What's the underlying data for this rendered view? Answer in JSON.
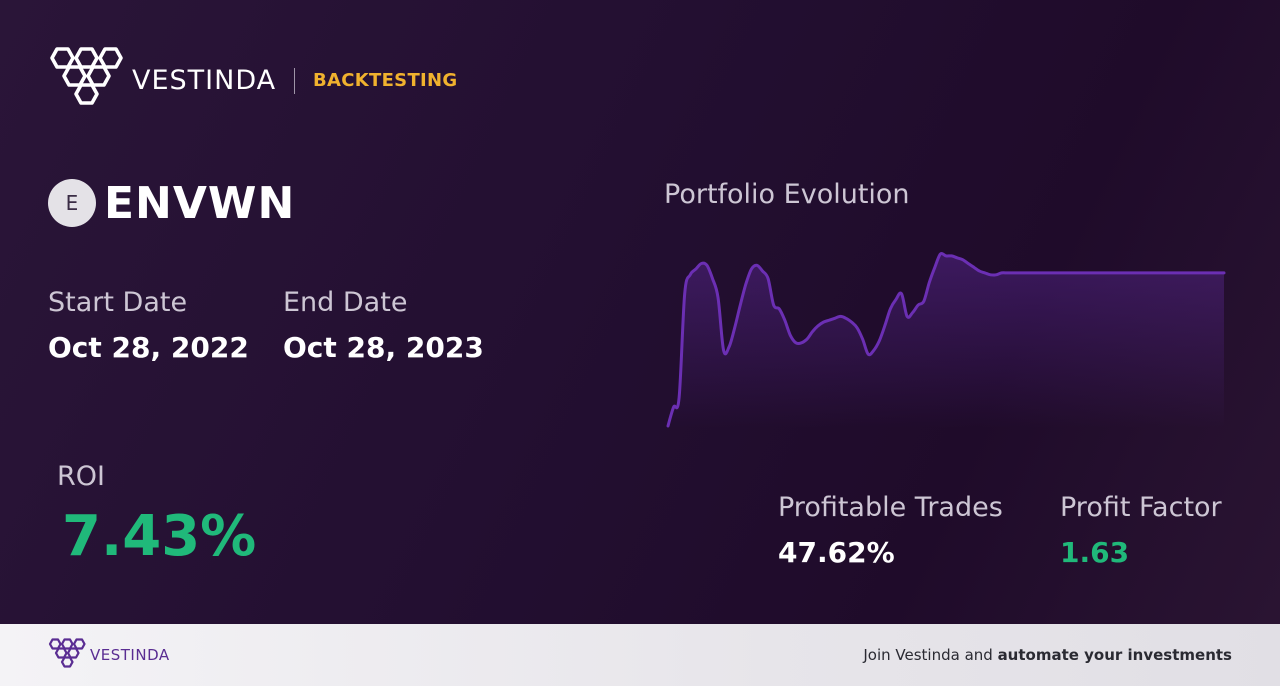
{
  "header": {
    "brand": "VESTINDA",
    "tag": "BACKTESTING",
    "logo_icon": "hexagon-cluster-icon"
  },
  "asset": {
    "badge_letter": "E",
    "symbol": "ENVWN"
  },
  "dates": {
    "start_label": "Start Date",
    "start_value": "Oct 28, 2022",
    "end_label": "End Date",
    "end_value": "Oct 28, 2023"
  },
  "roi": {
    "label": "ROI",
    "value": "7.43%"
  },
  "chart_title": "Portfolio Evolution",
  "chart_data": {
    "type": "area",
    "title": "Portfolio Evolution",
    "xlabel": "",
    "ylabel": "",
    "grid": false,
    "legend": "none",
    "x": [
      0,
      1,
      2,
      3,
      4,
      5,
      6,
      7,
      8,
      9,
      10,
      11,
      12,
      13,
      14,
      15,
      16,
      17,
      18,
      19,
      20,
      21,
      22,
      23,
      24,
      25,
      26,
      27,
      28,
      29,
      30,
      31,
      32,
      33,
      34,
      35,
      36,
      37,
      38,
      39,
      40,
      41,
      42,
      43,
      44,
      45,
      46,
      47,
      48,
      49,
      50,
      51,
      52,
      53,
      54,
      55,
      56,
      57,
      58,
      59,
      60,
      61,
      62,
      63,
      64,
      65,
      66,
      67,
      68,
      69,
      70,
      71,
      72,
      73,
      74,
      75,
      76,
      77,
      78,
      79,
      80,
      81,
      82,
      83,
      84,
      85,
      86,
      87,
      88,
      89,
      90,
      91,
      92,
      93,
      94,
      95,
      96,
      97,
      98,
      99,
      100
    ],
    "series": [
      {
        "values": [
          0,
          10,
          15,
          70,
          80,
          83,
          86,
          85,
          78,
          68,
          40,
          42,
          52,
          64,
          75,
          83,
          85,
          82,
          78,
          64,
          62,
          56,
          48,
          44,
          44,
          46,
          50,
          53,
          55,
          56,
          57,
          58,
          57,
          55,
          52,
          46,
          38,
          40,
          45,
          53,
          62,
          67,
          70,
          58,
          60,
          64,
          66,
          76,
          84,
          91,
          90,
          90,
          89,
          88,
          86,
          84,
          82,
          81,
          80,
          80,
          81,
          81,
          81,
          81,
          81,
          81,
          81,
          81,
          81,
          81,
          81,
          81,
          81,
          81,
          81,
          81,
          81,
          81,
          81,
          81,
          81,
          81,
          81,
          81,
          81,
          81,
          81,
          81,
          81,
          81,
          81,
          81,
          81,
          81,
          81,
          81,
          81,
          81,
          81,
          81,
          81
        ]
      }
    ],
    "color": "#6b2fb3"
  },
  "stats": {
    "profitable_trades_label": "Profitable Trades",
    "profitable_trades_value": "47.62%",
    "profit_factor_label": "Profit Factor",
    "profit_factor_value": "1.63"
  },
  "footer": {
    "brand": "VESTINDA",
    "cta_prefix": "Join Vestinda and ",
    "cta_bold": "automate your investments"
  },
  "colors": {
    "accent_gold": "#f0b22e",
    "positive_green": "#20b97a",
    "chart_purple": "#6b2fb3",
    "footer_brand_purple": "#5a2d92"
  }
}
